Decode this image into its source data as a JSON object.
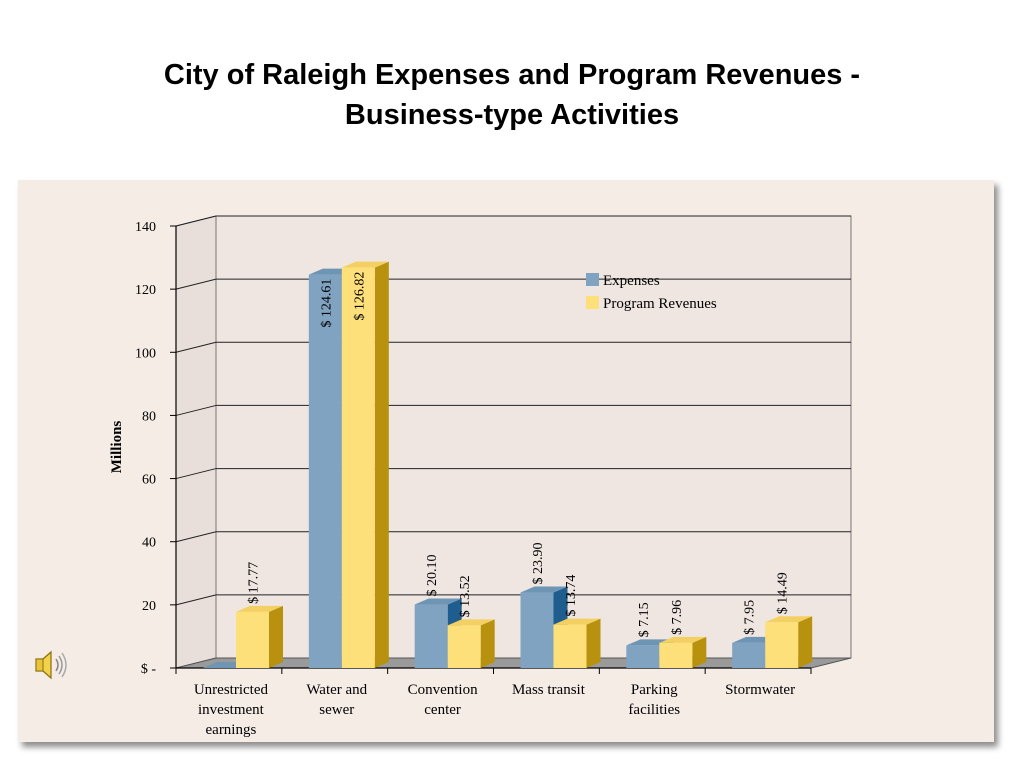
{
  "slide": {
    "title_line1": "City of Raleigh Expenses and Program Revenues -",
    "title_line2": "Business-type Activities"
  },
  "colors": {
    "expenses": "#7fa3c0",
    "program_revenues": "#fde07a"
  },
  "icons": {
    "sound": "speaker-icon"
  },
  "chart_data": {
    "type": "bar",
    "title": "",
    "xlabel": "",
    "ylabel": "Millions",
    "ylim": [
      0,
      140
    ],
    "yticks": [
      0,
      20,
      40,
      60,
      80,
      100,
      120,
      140
    ],
    "ytick_labels": [
      "$ -",
      "20",
      "40",
      "60",
      "80",
      "100",
      "120",
      "140"
    ],
    "categories": [
      [
        "Unrestricted",
        "investment",
        "earnings"
      ],
      [
        "Water and",
        "sewer"
      ],
      [
        "Convention",
        "center"
      ],
      [
        "Mass transit"
      ],
      [
        "Parking",
        "facilities"
      ],
      [
        "Stormwater"
      ]
    ],
    "series": [
      {
        "name": "Expenses",
        "values": [
          0,
          124.61,
          20.1,
          23.9,
          7.15,
          7.95
        ],
        "labels": [
          "",
          "$ 124.61",
          "$ 20.10",
          "$ 23.90",
          "$ 7.15",
          "$ 7.95"
        ]
      },
      {
        "name": "Program Revenues",
        "values": [
          17.77,
          126.82,
          13.52,
          13.74,
          7.96,
          14.49
        ],
        "labels": [
          "$ 17.77",
          "$ 126.82",
          "$ 13.52",
          "$ 13.74",
          "$ 7.96",
          "$ 14.49"
        ]
      }
    ],
    "legend_position": "top-right",
    "grid": true
  }
}
